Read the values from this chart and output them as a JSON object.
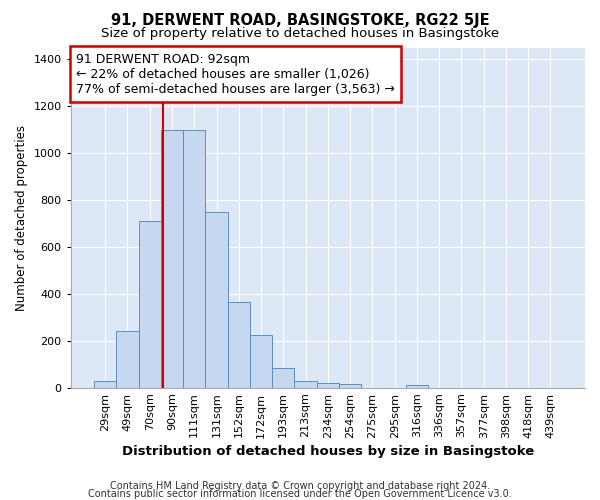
{
  "title": "91, DERWENT ROAD, BASINGSTOKE, RG22 5JE",
  "subtitle": "Size of property relative to detached houses in Basingstoke",
  "xlabel": "Distribution of detached houses by size in Basingstoke",
  "ylabel": "Number of detached properties",
  "footnote1": "Contains HM Land Registry data © Crown copyright and database right 2024.",
  "footnote2": "Contains public sector information licensed under the Open Government Licence v3.0.",
  "categories": [
    "29sqm",
    "49sqm",
    "70sqm",
    "90sqm",
    "111sqm",
    "131sqm",
    "152sqm",
    "172sqm",
    "193sqm",
    "213sqm",
    "234sqm",
    "254sqm",
    "275sqm",
    "295sqm",
    "316sqm",
    "336sqm",
    "357sqm",
    "377sqm",
    "398sqm",
    "418sqm",
    "439sqm"
  ],
  "values": [
    30,
    240,
    710,
    1100,
    1100,
    750,
    365,
    225,
    85,
    30,
    20,
    15,
    0,
    0,
    10,
    0,
    0,
    0,
    0,
    0,
    0
  ],
  "bar_color": "#c5d8f0",
  "bar_edge_color": "#5b8ec4",
  "annotation_line1": "91 DERWENT ROAD: 92sqm",
  "annotation_line2": "← 22% of detached houses are smaller (1,026)",
  "annotation_line3": "77% of semi-detached houses are larger (3,563) →",
  "annotation_box_color": "white",
  "annotation_box_edge_color": "#cc0000",
  "red_line_color": "#cc0000",
  "red_line_index": 3,
  "ylim": [
    0,
    1450
  ],
  "yticks": [
    0,
    200,
    400,
    600,
    800,
    1000,
    1200,
    1400
  ],
  "background_color": "#dce8f5",
  "grid_color": "white",
  "title_fontsize": 10.5,
  "subtitle_fontsize": 9.5,
  "xlabel_fontsize": 9.5,
  "ylabel_fontsize": 8.5,
  "tick_fontsize": 8,
  "annotation_fontsize": 9,
  "footnote_fontsize": 7
}
